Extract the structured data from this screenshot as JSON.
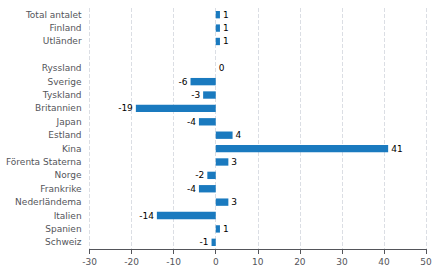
{
  "chart_data": {
    "type": "bar",
    "orientation": "horizontal",
    "categories": [
      "Schweiz",
      "Spanien",
      "Italien",
      "Nederländema",
      "Frankrike",
      "Norge",
      "Förenta Staterna",
      "Kina",
      "Estland",
      "Japan",
      "Britannien",
      "Tyskland",
      "Sverige",
      "Ryssland",
      null,
      "Utländer",
      "Finland",
      "Total antalet"
    ],
    "values": [
      -1,
      1,
      -14,
      3,
      -4,
      -2,
      3,
      41,
      4,
      -4,
      -19,
      -3,
      -6,
      0,
      null,
      1,
      1,
      1
    ],
    "color": "#1a7abf",
    "xlim": [
      -30,
      50
    ],
    "xticks": [
      -30,
      -20,
      -10,
      0,
      10,
      20,
      30,
      40,
      50
    ],
    "grid": true,
    "data_labels": true
  }
}
